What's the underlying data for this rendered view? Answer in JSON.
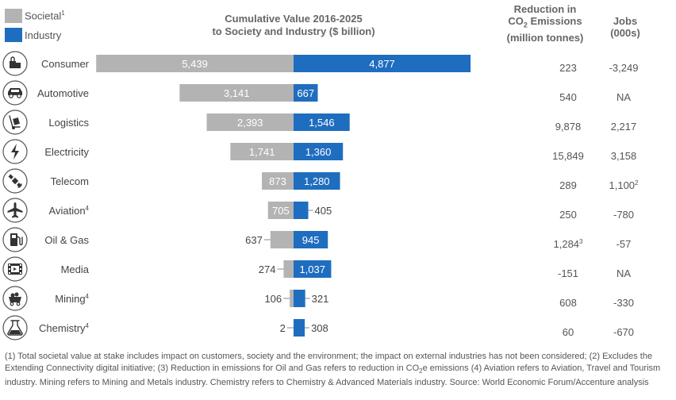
{
  "legend": {
    "societal": {
      "label": "Societal",
      "sup": "1",
      "color": "#b3b3b3"
    },
    "industry": {
      "label": "Industry",
      "color": "#1f6dbf"
    }
  },
  "chart_title": {
    "line1": "Cumulative Value 2016-2025",
    "line2": "to Society and Industry ($ billion)"
  },
  "columns": {
    "co2": {
      "line1": "Reduction in",
      "line2_pre": "CO",
      "line2_sub": "2",
      "line2_post": " Emissions",
      "line3": "(million tonnes)"
    },
    "jobs": {
      "line1": "Jobs",
      "line2": "(000s)"
    }
  },
  "chart_data": {
    "type": "bar",
    "categories": [
      "Consumer",
      "Automotive",
      "Logistics",
      "Electricity",
      "Telecom",
      "Aviation",
      "Oil & Gas",
      "Media",
      "Mining",
      "Chemistry"
    ],
    "category_sups": [
      "",
      "",
      "",
      "",
      "",
      "4",
      "",
      "",
      "4",
      "4"
    ],
    "icons": [
      "shopping-bags-icon",
      "car-icon",
      "hand-truck-icon",
      "lightning-bolt-icon",
      "satellite-icon",
      "airplane-icon",
      "fuel-pump-icon",
      "film-icon",
      "mine-cart-icon",
      "flask-icon"
    ],
    "series": [
      {
        "name": "Societal",
        "values": [
          5439,
          3141,
          2393,
          1741,
          873,
          705,
          637,
          274,
          106,
          2
        ]
      },
      {
        "name": "Industry",
        "values": [
          4877,
          667,
          1546,
          1360,
          1280,
          405,
          945,
          1037,
          321,
          308
        ]
      }
    ],
    "value_labels": {
      "societal": [
        "5,439",
        "3,141",
        "2,393",
        "1,741",
        "873",
        "705",
        "637",
        "274",
        "106",
        "2"
      ],
      "industry": [
        "4,877",
        "667",
        "1,546",
        "1,360",
        "1,280",
        "405",
        "945",
        "1,037",
        "321",
        "308"
      ]
    },
    "co2_reduction": [
      "223",
      "540",
      "9,878",
      "15,849",
      "289",
      "250",
      "1,284",
      "-151",
      "608",
      "60"
    ],
    "co2_sups": [
      "",
      "",
      "",
      "",
      "",
      "",
      "3",
      "",
      "",
      ""
    ],
    "jobs": [
      "-3,249",
      "NA",
      "2,217",
      "3,158",
      "1,100",
      "-780",
      "-57",
      "NA",
      "-330",
      "-670"
    ],
    "jobs_sups": [
      "",
      "",
      "",
      "",
      "2",
      "",
      "",
      "",
      "",
      ""
    ]
  },
  "footnote": {
    "part1": "(1) Total societal value at stake includes impact on customers, society and the environment; the impact on external industries has not been considered; (2) Excludes the Extending Connectivity digital initiative; (3) Reduction in emissions for Oil and Gas refers to reduction in CO",
    "sub": "2",
    "part2": "e emissions (4) Aviation refers to Aviation, Travel and Tourism industry. Mining refers to Mining and Metals industry. Chemistry refers to Chemistry & Advanced Materials industry. Source: World Economic Forum/Accenture analysis"
  }
}
